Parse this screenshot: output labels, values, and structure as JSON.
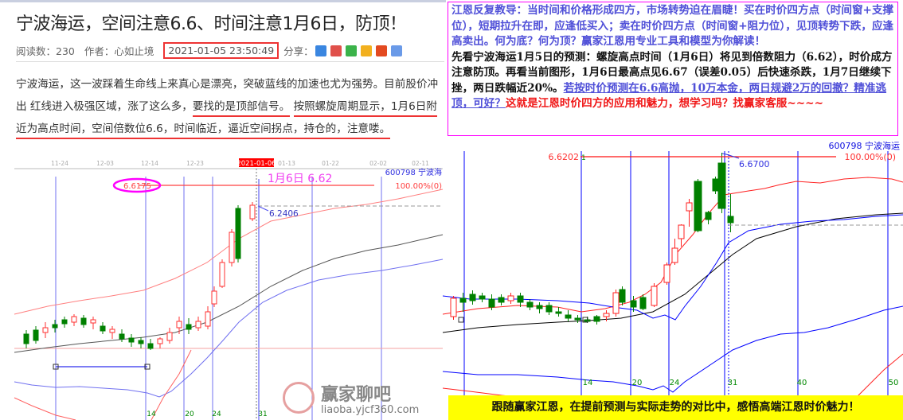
{
  "article": {
    "title": "宁波海运，空间注意6.6、时间注意1月6日，防顶！",
    "read_label": "阅读数：",
    "read_count": "230",
    "author_label": "作者：心如止境",
    "datetime": "2021-01-05 23:50:49",
    "share_label": "分享：",
    "share_icons": [
      "plus-icon",
      "weibo-icon",
      "wechat-icon",
      "qq-icon",
      "tencent-weibo-icon",
      "tieba-icon"
    ],
    "para": {
      "p1": "宁波海运，这一波踩着生命线上来真心是漂亮，突破蓝线的加速也尤为强势。目前股价冲出 红线进入极强区域，涨了这么多，",
      "u1": "要找的是顶部信号。",
      "u2": "按照螺旋周期显示，1月6日附近为高点时间，空间倍数位6.6，时间临近，逼近空间拐点，持仓的，注意",
      "u3": "喽。"
    }
  },
  "left_chart": {
    "dates": [
      "11-24",
      "12-03",
      "12-14",
      "12-23",
      "2021-01-06",
      "01-13",
      "01-22",
      "02-02",
      "02-11"
    ],
    "high_label": "6.6175",
    "annotation": "1月6日 6.62",
    "pct_label": "100.00%(0)",
    "stock": "600798 宁波海",
    "price_label": "6.2406",
    "bottom_ticks": [
      "14",
      "20",
      "24",
      "31"
    ]
  },
  "right_chart": {
    "high_label": "6.6202",
    "pct_label": "100.00%(0)",
    "stock": "600798 宁波海运",
    "price_label": "6.6700",
    "bottom_ticks": [
      "14",
      "20",
      "24",
      "31",
      "40",
      "50"
    ],
    "top_tick": "1"
  },
  "note": {
    "blue": "江恩反复教导：当时间和价格形成四方，市场转势迫在眉睫！买在时价四方点（时间窗+支撑位），短期拉升在即，应逢低买入；卖在时价四方点（时间窗+阻力位），见顶转势下跌，应逢高卖出。何为底？何为顶？赢家江恩用专业工具和模型为你解读！",
    "black": "先看宁波海运1月5日的预测：螺旋高点时间（1月6日）将见到倍数阻力（6.62），时价成方注意防顶。再看当前图形，1月6日最高点见6.67（误差0.05）后快速杀跌，1月7日继续下挫，两日跌幅近20%。",
    "link": "若按时价预测在6.6高抛，10万本金，两日规避2万的回撤？精准逃顶，可好？",
    "red": "这就是江恩时价四方的应用和魅力，想学习吗？找赢家客服~~~~"
  },
  "watermark": {
    "name": "赢家聊吧",
    "url": "liaoba.yjcf360.com"
  },
  "banner": "跟随赢家江恩，在提前预测与实际走势的对比中，感悟高端江恩时价魅力！",
  "colors": {
    "accent_red": "#ee3333",
    "note_border": "#ff00ff",
    "note_blue": "#5050d8",
    "banner_bg": "#ffff00",
    "up_candle": "#ff2020",
    "down_candle": "#008000"
  }
}
